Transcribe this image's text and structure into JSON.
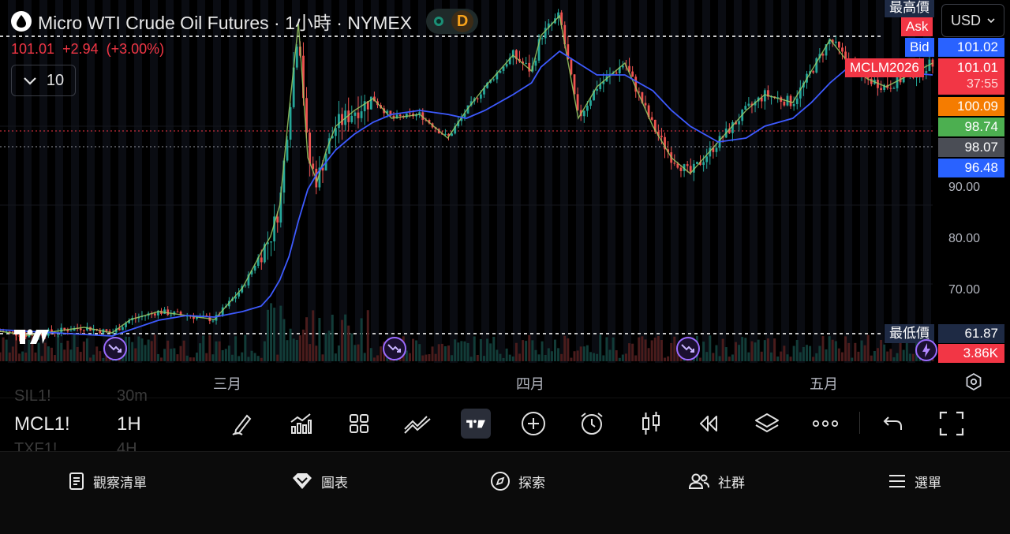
{
  "header": {
    "title": "Micro WTI Crude Oil Futures · 1小時 · NYMEX",
    "status_letter": "D"
  },
  "quote": {
    "last": "101.01",
    "change": "+2.94",
    "change_pct": "(+3.00%)"
  },
  "interval_box": {
    "value": "10"
  },
  "currency": "USD",
  "price_axis": {
    "ticks": [
      "90.00",
      "80.00",
      "70.00"
    ]
  },
  "price_tags": {
    "high_label": "最高價",
    "ask_label": "Ask",
    "bid_label": "Bid",
    "bid_value": "101.02",
    "contract_label": "MCLM2026",
    "contract_value": "101.01",
    "countdown": "37:55",
    "tag_orange": "100.09",
    "tag_green": "98.74",
    "tag_grey": "98.07",
    "tag_blue": "96.48",
    "low_label": "最低價",
    "low_value": "61.87",
    "volume_value": "3.86K"
  },
  "colors": {
    "up": "#26a69a",
    "down": "#ef5350",
    "ma_fast": "#9ccc65",
    "ma_slow": "#3d5afe",
    "orange": "#f57c00",
    "green": "#4caf50",
    "grey": "#5d606b",
    "blue": "#2962ff",
    "red": "#f23645"
  },
  "time_axis": {
    "months": [
      "三月",
      "四月",
      "五月"
    ]
  },
  "toolbar": {
    "symbol": "MCL1!",
    "timeframe": "1H",
    "ghost_top_symbol": "SIL1!",
    "ghost_top_tf": "30m",
    "ghost_bottom_symbol": "TXF1!",
    "ghost_bottom_tf": "4H"
  },
  "bottom_nav": {
    "watchlist": "觀察清單",
    "chart": "圖表",
    "explore": "探索",
    "community": "社群",
    "menu": "選單"
  },
  "chart_data": {
    "type": "line",
    "title": "Micro WTI Crude Oil Futures · 1小時 · NYMEX",
    "xlabel": "",
    "ylabel": "",
    "ylim": [
      60,
      106
    ],
    "x": [
      0,
      3,
      6,
      9,
      12,
      14,
      17,
      20,
      23,
      26,
      28,
      29,
      30,
      31,
      32,
      33,
      34,
      35,
      36,
      38,
      40,
      42,
      45,
      48,
      50,
      52,
      55,
      57,
      58,
      60,
      62,
      64,
      65,
      67,
      70,
      72,
      74,
      77,
      80,
      82,
      85,
      87,
      89,
      91,
      93,
      95,
      100
    ],
    "series": [
      {
        "values": [
          64,
          63.5,
          64,
          64.5,
          63.8,
          65.5,
          66.5,
          66,
          65.5,
          69.5,
          74,
          76,
          80,
          92,
          103,
          86,
          83,
          87,
          90,
          92,
          93.5,
          91,
          91.5,
          88.5,
          92,
          95,
          99,
          97,
          101.5,
          104,
          91,
          95,
          96,
          98,
          90,
          86,
          84,
          88,
          92,
          94,
          93,
          97,
          101,
          98,
          96,
          95,
          98
        ]
      },
      {
        "values": [
          64.2,
          64,
          63.8,
          63.6,
          63.4,
          64.2,
          65.4,
          66,
          65.8,
          66.5,
          67.2,
          68.5,
          70.5,
          73.5,
          78,
          82,
          84,
          85.5,
          87,
          89,
          90.5,
          91.5,
          92,
          91.5,
          91,
          92,
          94,
          95.5,
          97.5,
          99.5,
          98,
          96.5,
          96.5,
          96.5,
          94.5,
          92,
          90,
          88,
          88.5,
          90,
          91,
          93,
          95.5,
          97.5,
          97.5,
          97,
          96.5
        ]
      }
    ]
  }
}
